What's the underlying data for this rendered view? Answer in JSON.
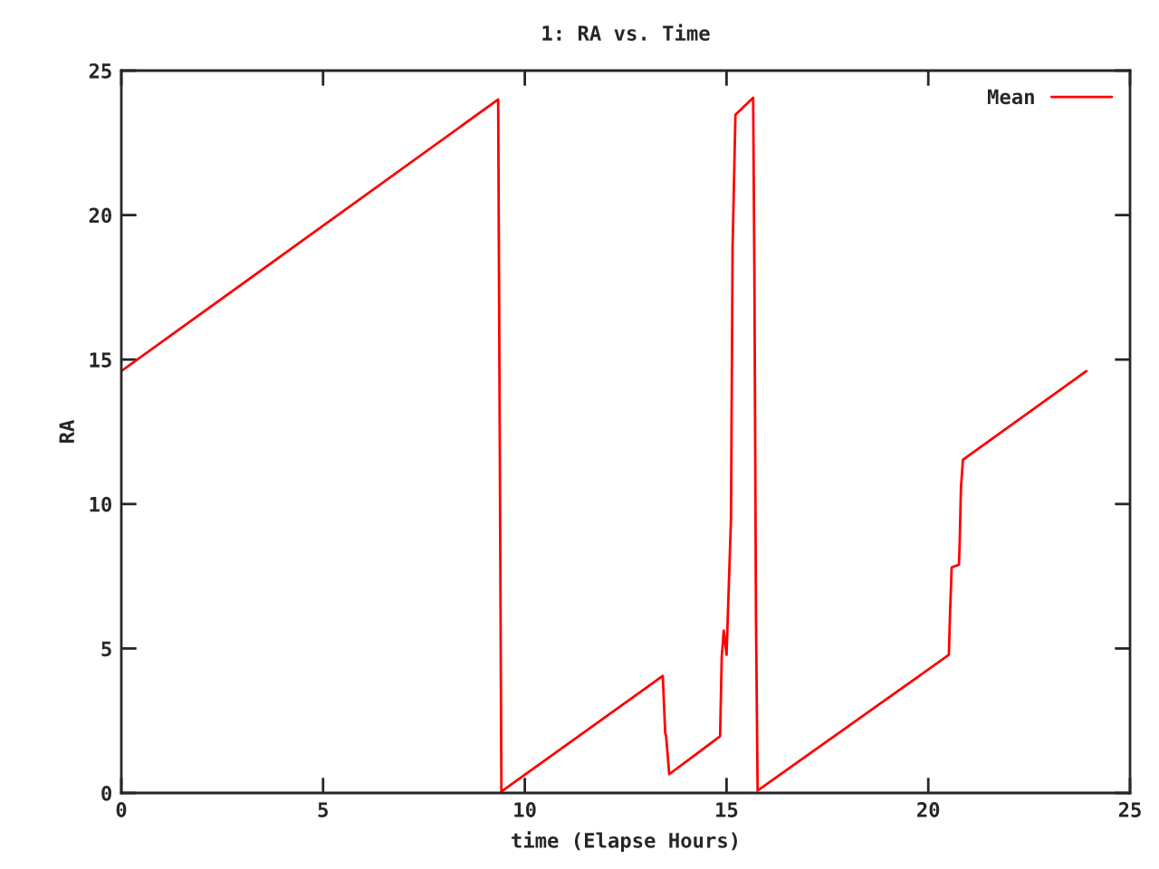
{
  "chart_data": {
    "type": "line",
    "title": "1: RA vs. Time",
    "xlabel": "time (Elapse Hours)",
    "ylabel": "RA",
    "series": [
      {
        "name": "Mean",
        "color": "#ff0000",
        "x": [
          0,
          9.34,
          9.38,
          9.42,
          13.42,
          13.48,
          13.5,
          13.58,
          14.84,
          14.88,
          14.93,
          15.0,
          15.11,
          15.15,
          15.22,
          15.66,
          15.69,
          15.73,
          15.77,
          20.51,
          20.54,
          20.58,
          20.76,
          20.78,
          20.81,
          20.86,
          23.92
        ],
        "values": [
          14.6,
          24.0,
          12.0,
          0.05,
          4.05,
          2.07,
          2.0,
          0.65,
          1.96,
          4.68,
          5.62,
          4.78,
          9.48,
          18.88,
          23.47,
          24.06,
          18.05,
          6.03,
          0.08,
          4.78,
          6.25,
          7.81,
          7.9,
          8.75,
          10.57,
          11.53,
          14.6
        ]
      }
    ],
    "xlim": [
      0,
      25
    ],
    "ylim": [
      0,
      25
    ],
    "xticks": [
      0,
      5,
      10,
      15,
      20,
      25
    ],
    "yticks": [
      0,
      5,
      10,
      15,
      20,
      25
    ],
    "grid": false,
    "legend": "top right",
    "marker": "none",
    "line_style": "solid"
  }
}
